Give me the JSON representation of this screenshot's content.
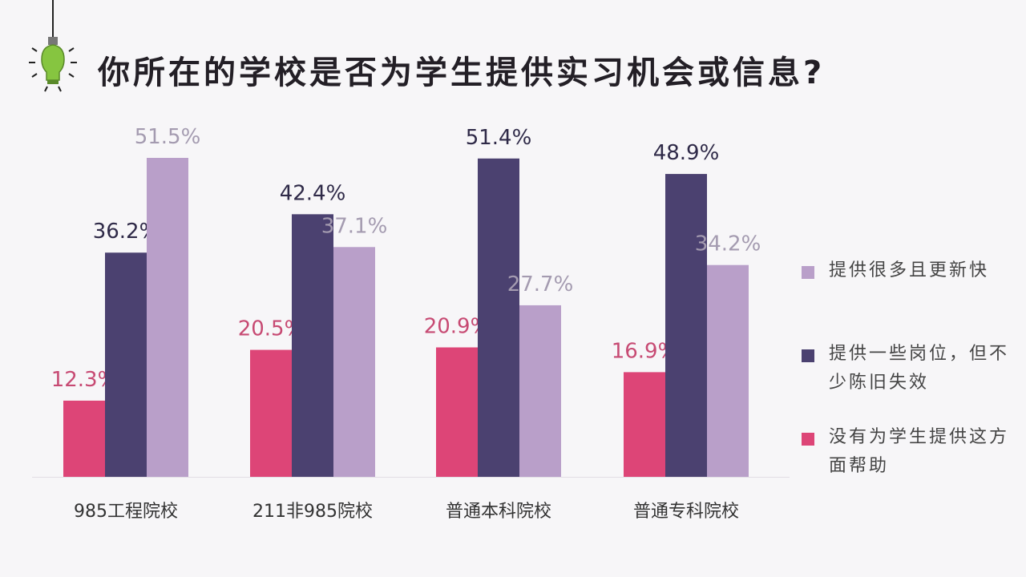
{
  "title": "你所在的学校是否为学生提供实习机会或信息?",
  "colors": {
    "pink": "#dd4577",
    "navy": "#4b4170",
    "lavender": "#b99fc9",
    "bulb": "#86c540",
    "text": "#231f26"
  },
  "chart_data": {
    "type": "bar",
    "categories": [
      "985工程院校",
      "211非985院校",
      "普通本科院校",
      "普通专科院校"
    ],
    "series": [
      {
        "name": "没有为学生提供这方面帮助",
        "values": [
          12.3,
          20.5,
          20.9,
          16.9
        ],
        "labels": [
          "12.3%",
          "20.5%",
          "20.9%",
          "16.9%"
        ],
        "color": "#dd4577",
        "label_color": "#c74a73"
      },
      {
        "name": "提供一些岗位，但不少陈旧失效",
        "values": [
          36.2,
          42.4,
          51.4,
          48.9
        ],
        "labels": [
          "36.2%",
          "42.4%",
          "51.4%",
          "48.9%"
        ],
        "color": "#4b4170",
        "label_color": "#2f2a48"
      },
      {
        "name": "提供很多且更新快",
        "values": [
          51.5,
          37.1,
          27.7,
          34.2
        ],
        "labels": [
          "51.5%",
          "37.1%",
          "27.7%",
          "34.2%"
        ],
        "color": "#b99fc9",
        "label_color": "#a49bb0"
      }
    ],
    "legend": [
      {
        "label": "提供很多且更新快",
        "color": "#b99fc9"
      },
      {
        "label": "提供一些岗位，但不少陈旧失效",
        "color": "#4b4170"
      },
      {
        "label": "没有为学生提供这方面帮助",
        "color": "#dd4577"
      }
    ],
    "legend_position": "right",
    "ylim": [
      0,
      60
    ],
    "grid": false,
    "xlabel": "",
    "ylabel": ""
  }
}
